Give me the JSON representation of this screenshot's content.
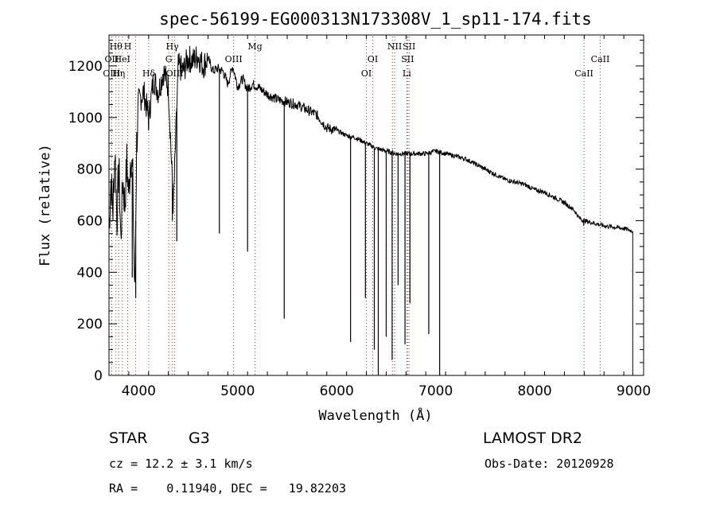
{
  "chart_data": {
    "type": "line",
    "title": "spec-56199-EG000313N173308V_1_sp11-174.fits",
    "xlabel": "Wavelength (Å)",
    "ylabel": "Flux (relative)",
    "xlim": [
      3700,
      9100
    ],
    "ylim": [
      0,
      1320
    ],
    "xticks": [
      4000,
      5000,
      6000,
      7000,
      8000,
      9000
    ],
    "yticks": [
      0,
      200,
      400,
      600,
      800,
      1000,
      1200
    ],
    "grid": false,
    "legend": "none",
    "line_color": "#000000",
    "marker_color": "#8c3b3b",
    "series": [
      {
        "x": [
          3700,
          3720,
          3740,
          3760,
          3780,
          3800,
          3820,
          3840,
          3860,
          3880,
          3900,
          3920,
          3940,
          3960,
          3980,
          4000,
          4050,
          4100,
          4150,
          4200,
          4250,
          4300,
          4350,
          4400,
          4450,
          4500,
          4550,
          4600,
          4650,
          4700,
          4750,
          4800,
          4850,
          4900,
          4950,
          5000,
          5050,
          5100,
          5150,
          5200,
          5300,
          5400,
          5500,
          5600,
          5700,
          5800,
          5900,
          6000,
          6100,
          6200,
          6300,
          6400,
          6500,
          6600,
          6700,
          6800,
          6900,
          7000,
          7100,
          7200,
          7300,
          7400,
          7500,
          7600,
          7700,
          7800,
          7900,
          8000,
          8100,
          8200,
          8300,
          8400,
          8450,
          8500,
          8600,
          8700,
          8800,
          8900,
          8990
        ],
        "y": [
          560,
          760,
          640,
          880,
          600,
          820,
          520,
          760,
          660,
          830,
          700,
          870,
          760,
          300,
          900,
          1060,
          1100,
          1000,
          1150,
          1100,
          1180,
          1120,
          650,
          1200,
          1180,
          1230,
          1220,
          1240,
          1200,
          1230,
          1180,
          1190,
          1180,
          1130,
          1200,
          1120,
          1150,
          1110,
          1130,
          1120,
          1090,
          1070,
          1060,
          1050,
          1030,
          1010,
          960,
          950,
          930,
          920,
          900,
          880,
          870,
          860,
          860,
          860,
          860,
          870,
          860,
          850,
          840,
          820,
          800,
          780,
          760,
          750,
          740,
          720,
          710,
          690,
          670,
          640,
          610,
          600,
          590,
          580,
          575,
          570,
          560
        ]
      }
    ],
    "absorption_dips": [
      {
        "x": 3935,
        "y": 380
      },
      {
        "x": 3970,
        "y": 300
      },
      {
        "x": 4100,
        "y": 950
      },
      {
        "x": 4340,
        "y": 600
      },
      {
        "x": 4385,
        "y": 520
      },
      {
        "x": 4815,
        "y": 550
      },
      {
        "x": 5100,
        "y": 480
      },
      {
        "x": 5470,
        "y": 220
      },
      {
        "x": 6140,
        "y": 130
      },
      {
        "x": 6290,
        "y": 300
      },
      {
        "x": 6380,
        "y": 100
      },
      {
        "x": 6420,
        "y": 0
      },
      {
        "x": 6500,
        "y": 150
      },
      {
        "x": 6560,
        "y": 60
      },
      {
        "x": 6620,
        "y": 350
      },
      {
        "x": 6690,
        "y": 120
      },
      {
        "x": 6740,
        "y": 280
      },
      {
        "x": 6930,
        "y": 160
      },
      {
        "x": 7040,
        "y": 0
      },
      {
        "x": 8495,
        "y": 580
      }
    ],
    "line_markers": [
      {
        "x": 3727,
        "label": "OII",
        "row": 2
      },
      {
        "x": 3727,
        "label": "OIII",
        "row": 3
      },
      {
        "x": 3770,
        "label": "Hθ",
        "row": 1
      },
      {
        "x": 3798,
        "label": "Hη",
        "row": 3
      },
      {
        "x": 3835,
        "label": "HeI",
        "row": 2
      },
      {
        "x": 3889,
        "label": "H",
        "row": 1
      },
      {
        "x": 3969,
        "label": "",
        "row": 0
      },
      {
        "x": 4102,
        "label": "Hδ",
        "row": 3
      },
      {
        "x": 4304,
        "label": "G",
        "row": 2
      },
      {
        "x": 4340,
        "label": "Hγ",
        "row": 1
      },
      {
        "x": 4363,
        "label": "OIII",
        "row": 3
      },
      {
        "x": 4959,
        "label": "OIII",
        "row": 2
      },
      {
        "x": 5175,
        "label": "Mg",
        "row": 1
      },
      {
        "x": 6300,
        "label": "OI",
        "row": 3
      },
      {
        "x": 6364,
        "label": "OI",
        "row": 2
      },
      {
        "x": 6563,
        "label": "",
        "row": 0
      },
      {
        "x": 6585,
        "label": "NII",
        "row": 1
      },
      {
        "x": 6708,
        "label": "Li",
        "row": 3
      },
      {
        "x": 6716,
        "label": "SII",
        "row": 2
      },
      {
        "x": 6731,
        "label": "SII",
        "row": 1
      },
      {
        "x": 8498,
        "label": "CaII",
        "row": 3
      },
      {
        "x": 8662,
        "label": "CaII",
        "row": 2
      }
    ]
  },
  "info": {
    "object_class": "STAR",
    "subclass": "G3",
    "survey": "LAMOST DR2",
    "cz": "cz = 12.2 ± 3.1 km/s",
    "obs_date": "Obs-Date: 20120928",
    "coords": "RA =    0.11940, DEC =   19.82203"
  }
}
